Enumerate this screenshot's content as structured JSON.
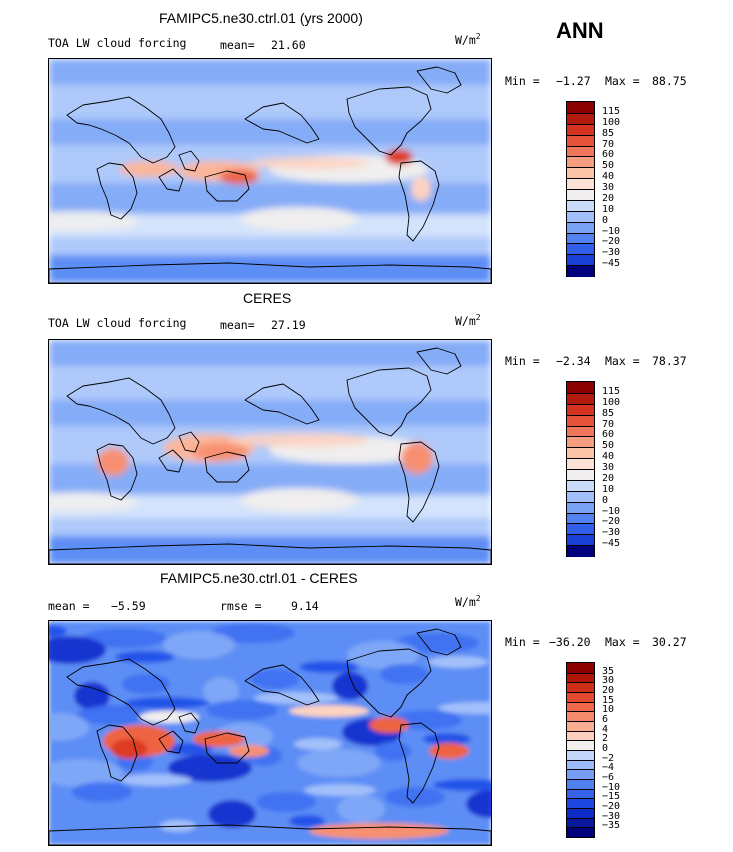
{
  "season": "ANN",
  "units": "W/m",
  "units_exp": "2",
  "palette": {
    "map": [
      "#00007f",
      "#0a25c9",
      "#1848e6",
      "#3a6df1",
      "#5d8ef5",
      "#85acf7",
      "#aec9fa",
      "#d3e3fb",
      "#f0eeee",
      "#fdd3c0",
      "#fbb69a",
      "#f7906f",
      "#ee6443",
      "#dd3a24",
      "#c0170f",
      "#8b0000"
    ]
  },
  "panels": [
    {
      "id": "model",
      "title": "FAMIPC5.ne30.ctrl.01 (yrs 2000)",
      "left_label": "TOA LW cloud forcing",
      "stat1_label": "mean=",
      "stat1_value": "21.60",
      "stat2_label": "",
      "stat2_value": "",
      "min_label": "Min =",
      "min_value": "−1.27",
      "max_label": "Max =",
      "max_value": "88.75",
      "colorbar_labels": [
        "115",
        "100",
        "85",
        "70",
        "60",
        "50",
        "40",
        "30",
        "20",
        "10",
        "0",
        "−10",
        "−20",
        "−30",
        "−45"
      ],
      "colors": [
        "#8b0000",
        "#b31a0e",
        "#d43420",
        "#e5533a",
        "#f0775b",
        "#f69d80",
        "#fbc3a8",
        "#fbe2d4",
        "#f0eeee",
        "#c9dcfa",
        "#a1bff8",
        "#7ba3f5",
        "#5282ef",
        "#2f5ee9",
        "#1a3fd6",
        "#00007f"
      ]
    },
    {
      "id": "obs",
      "title": "CERES",
      "left_label": "TOA LW cloud forcing",
      "stat1_label": "mean=",
      "stat1_value": "27.19",
      "stat2_label": "",
      "stat2_value": "",
      "min_label": "Min =",
      "min_value": "−2.34",
      "max_label": "Max =",
      "max_value": "78.37",
      "colorbar_labels": [
        "115",
        "100",
        "85",
        "70",
        "60",
        "50",
        "40",
        "30",
        "20",
        "10",
        "0",
        "−10",
        "−20",
        "−30",
        "−45"
      ],
      "colors": [
        "#8b0000",
        "#b31a0e",
        "#d43420",
        "#e5533a",
        "#f0775b",
        "#f69d80",
        "#fbc3a8",
        "#fbe2d4",
        "#f0eeee",
        "#c9dcfa",
        "#a1bff8",
        "#7ba3f5",
        "#5282ef",
        "#2f5ee9",
        "#1a3fd6",
        "#00007f"
      ]
    },
    {
      "id": "diff",
      "title": "FAMIPC5.ne30.ctrl.01 - CERES",
      "left_label": "",
      "stat1_label": "mean =",
      "stat1_value": "−5.59",
      "stat2_label": "rmse =",
      "stat2_value": "9.14",
      "min_label": "Min =",
      "min_value": "−36.20",
      "max_label": "Max =",
      "max_value": "30.27",
      "colorbar_labels": [
        "35",
        "30",
        "20",
        "15",
        "10",
        "6",
        "4",
        "2",
        "0",
        "−2",
        "−4",
        "−6",
        "−10",
        "−15",
        "−20",
        "−30",
        "−35"
      ],
      "colors": [
        "#8b0000",
        "#b01709",
        "#cf2e17",
        "#e14a2e",
        "#ee6849",
        "#f58a6c",
        "#f9ad93",
        "#fcd0bd",
        "#f3efee",
        "#c3d6f9",
        "#9bbaf7",
        "#779df4",
        "#5080ee",
        "#3462e9",
        "#1d46de",
        "#0d2bc7",
        "#0a189c",
        "#00007f"
      ]
    }
  ]
}
